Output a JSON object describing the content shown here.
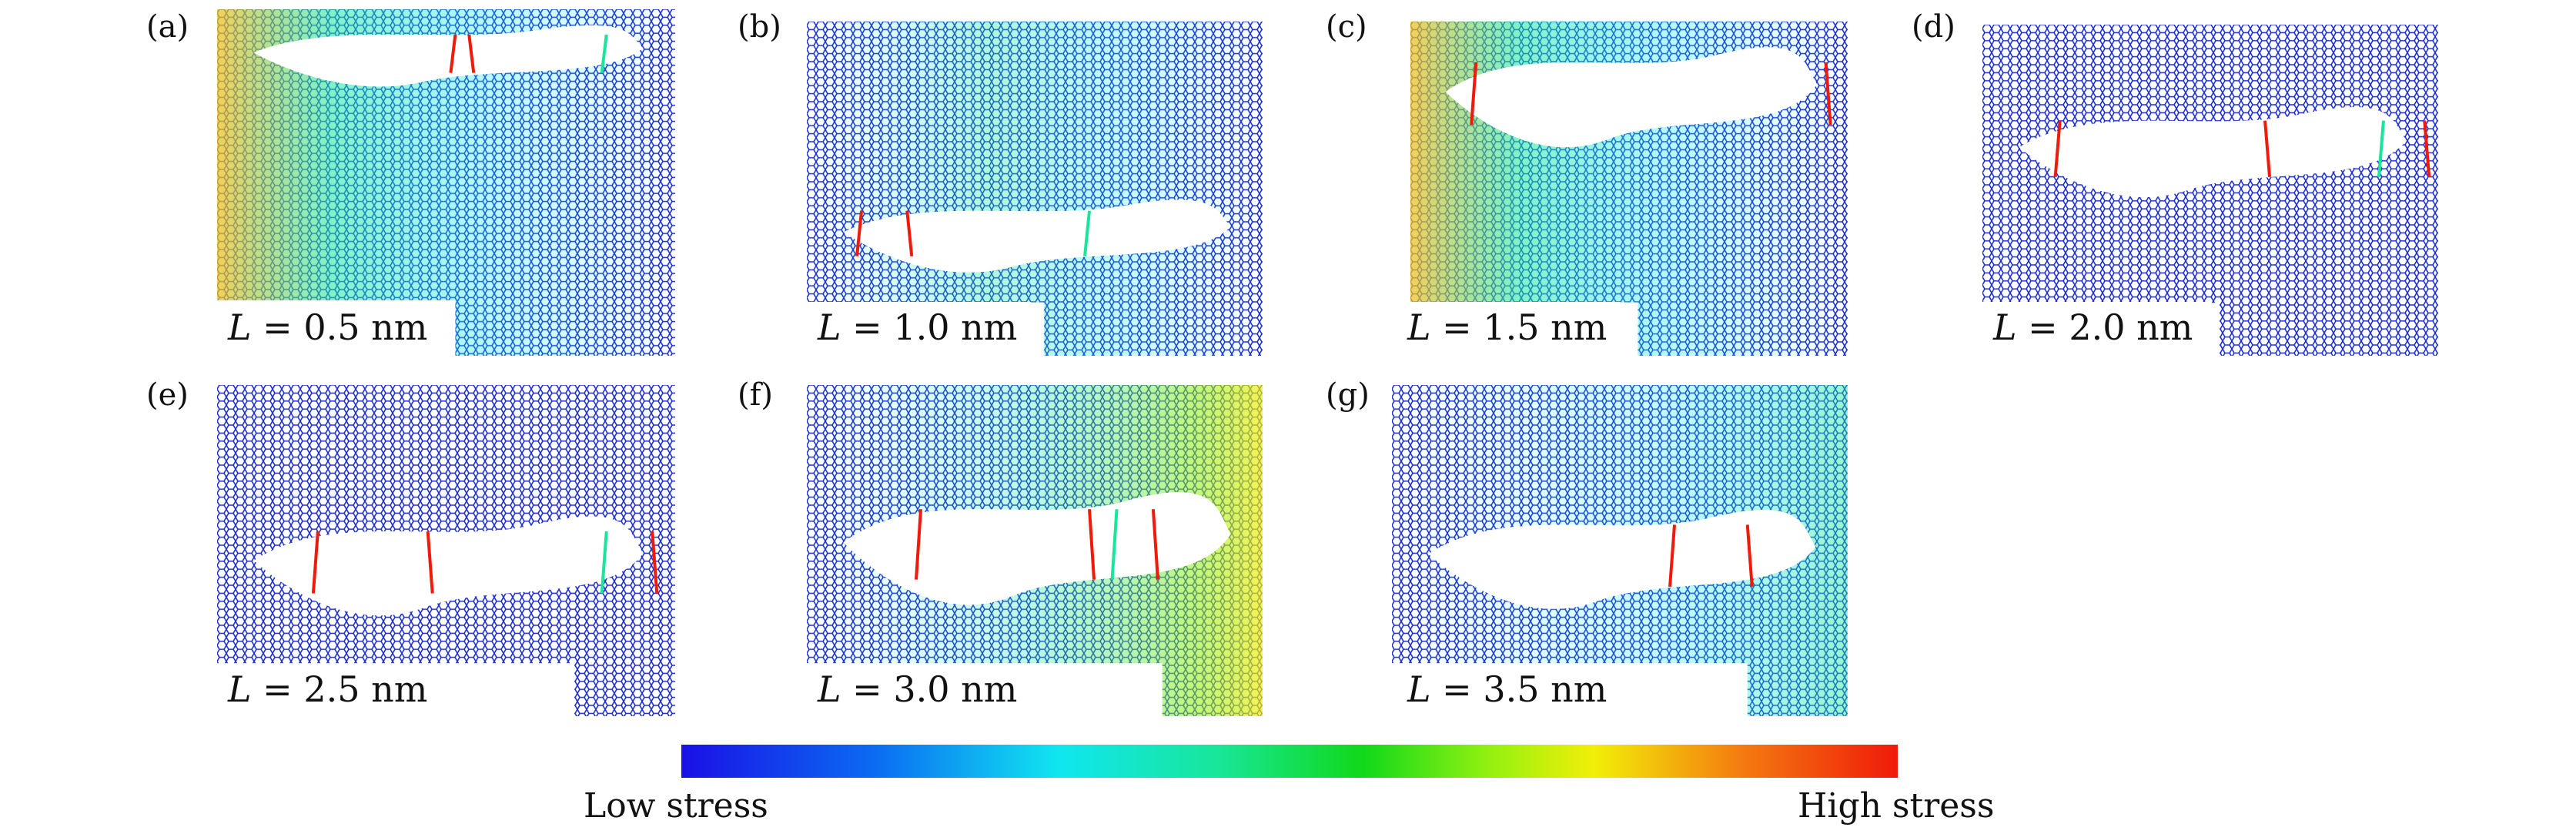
{
  "panels": [
    {
      "tag": "(a)",
      "var": "L",
      "value": "= 0.5 nm"
    },
    {
      "tag": "(b)",
      "var": "L",
      "value": "= 1.0 nm"
    },
    {
      "tag": "(c)",
      "var": "L",
      "value": "= 1.5 nm"
    },
    {
      "tag": "(d)",
      "var": "L",
      "value": "= 2.0 nm"
    },
    {
      "tag": "(e)",
      "var": "L",
      "value": "= 2.5 nm"
    },
    {
      "tag": "(f)",
      "var": "L",
      "value": "= 3.0 nm"
    },
    {
      "tag": "(g)",
      "var": "L",
      "value": "= 3.5 nm"
    }
  ],
  "colorbar": {
    "low_label": "Low stress",
    "high_label": "High stress",
    "colors": [
      "#1a10e6",
      "#0b6cf2",
      "#10e6f0",
      "#10d81a",
      "#f2ef08",
      "#f01a0a"
    ]
  },
  "lattice": {
    "base_color": "#1f2fd0",
    "high_color": "#f01a0a",
    "mid_color": "#18e69a"
  }
}
